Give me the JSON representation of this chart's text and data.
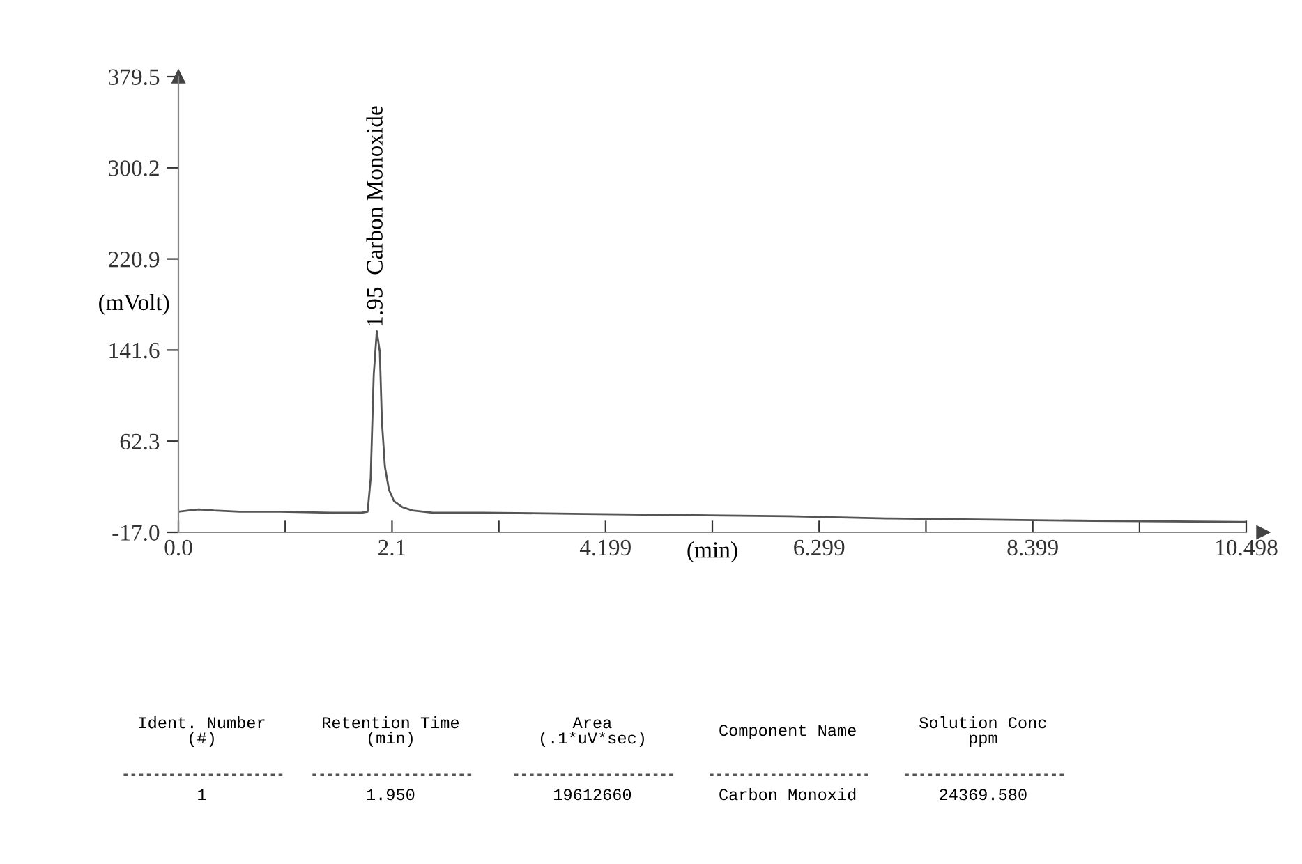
{
  "chart_data": {
    "type": "line",
    "xlabel": "(min)",
    "ylabel": "(mVolt)",
    "x": [
      0,
      0.1,
      0.2,
      0.35,
      0.6,
      1.0,
      1.5,
      1.8,
      1.86,
      1.89,
      1.92,
      1.95,
      1.98,
      2.0,
      2.03,
      2.07,
      2.12,
      2.2,
      2.3,
      2.5,
      3,
      4,
      5,
      6,
      7,
      8,
      9,
      10.498
    ],
    "series": [
      {
        "color": "#555555",
        "values": [
          1,
          2,
          3,
          2,
          1,
          1,
          0,
          0,
          1,
          30,
          120,
          158,
          140,
          80,
          40,
          20,
          10,
          5,
          2,
          0,
          0,
          -1,
          -2,
          -3,
          -5,
          -6,
          -7,
          -8
        ]
      }
    ],
    "xlim": [
      0,
      10.498
    ],
    "ylim": [
      -17.0,
      379.5
    ],
    "xticks": [
      {
        "value": 0,
        "label": "0.0"
      },
      {
        "value": 1.05,
        "label": null
      },
      2.1,
      {
        "value": 3.15,
        "label": null
      },
      4.199,
      {
        "value": 5.249,
        "label": null
      },
      6.299,
      {
        "value": 7.349,
        "label": null
      },
      8.399,
      {
        "value": 9.449,
        "label": null
      },
      10.498
    ],
    "yticks": [
      {
        "value": -17.0,
        "label": "-17.0"
      },
      62.3,
      141.6,
      220.9,
      300.2,
      379.5
    ],
    "grid": false,
    "legend": false,
    "marker": "none",
    "line_style": "solid",
    "annotations": [
      {
        "text": "1.95  Carbon Monoxide",
        "x": 1.95,
        "y": 158
      },
      "Ident. Number\n(#)",
      "1",
      "Retention Time\n(min)",
      "1.950",
      "Area\n(.1*uV*sec)",
      "19612660",
      "Component Name",
      "Carbon Monoxid",
      "Solution Conc\nppm",
      "24369.580"
    ]
  }
}
